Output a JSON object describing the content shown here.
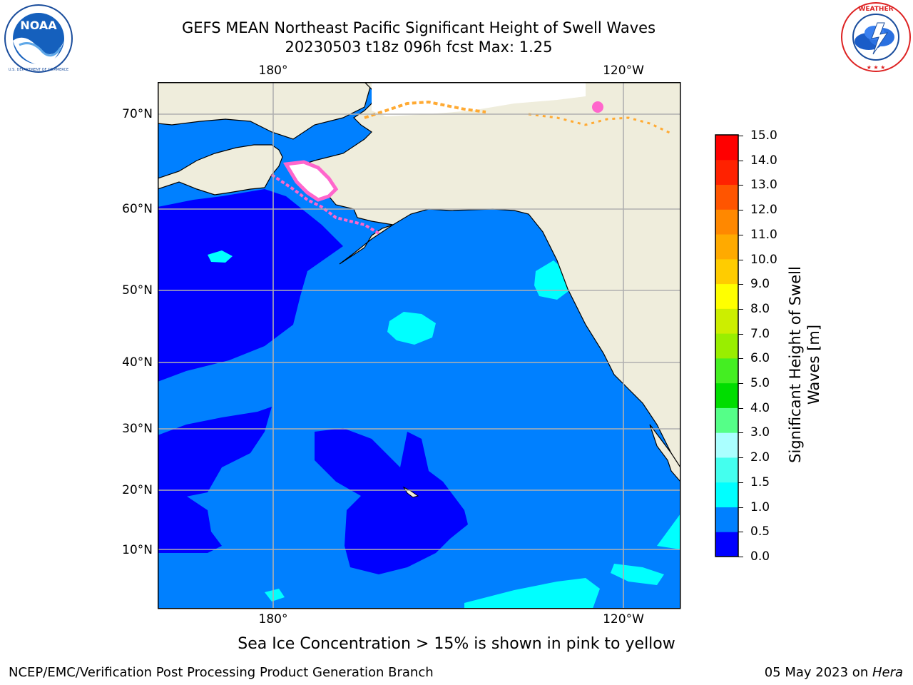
{
  "title_line1": "GEFS MEAN Northeast Pacific Significant Height of Swell Waves",
  "title_line2": "20230503 t18z 096h fcst   Max: 1.25",
  "top_lon_labels": [
    "180°",
    "120°W"
  ],
  "bottom_lon_labels": [
    "180°",
    "120°W"
  ],
  "lat_labels": [
    "70°N",
    "60°N",
    "50°N",
    "40°N",
    "30°N",
    "20°N",
    "10°N"
  ],
  "colorbar": {
    "label": "Significant Height of Swell Waves [m]",
    "ticks": [
      "15.0",
      "14.0",
      "13.0",
      "12.0",
      "11.0",
      "10.0",
      "9.0",
      "8.0",
      "7.0",
      "6.0",
      "5.0",
      "4.0",
      "3.0",
      "2.0",
      "1.5",
      "1.0",
      "0.5",
      "0.0"
    ],
    "colors_bottom_to_top": [
      "#0000ff",
      "#0080ff",
      "#00ffff",
      "#44ffee",
      "#aaffff",
      "#55ff88",
      "#00dd00",
      "#44ee22",
      "#99ee00",
      "#ccee00",
      "#ffff00",
      "#ffcc00",
      "#ffaa00",
      "#ff8800",
      "#ff5500",
      "#ff2200",
      "#ff0000"
    ]
  },
  "ice_note": "Sea Ice Concentration > 15% is shown in pink to yellow",
  "footer_left": "NCEP/EMC/Verification Post Processing Product Generation Branch",
  "footer_right_prefix": "05 May 2023 on ",
  "footer_right_host": "Hera",
  "logos": {
    "left": "NOAA",
    "right": "NATIONAL WEATHER SERVICE"
  }
}
